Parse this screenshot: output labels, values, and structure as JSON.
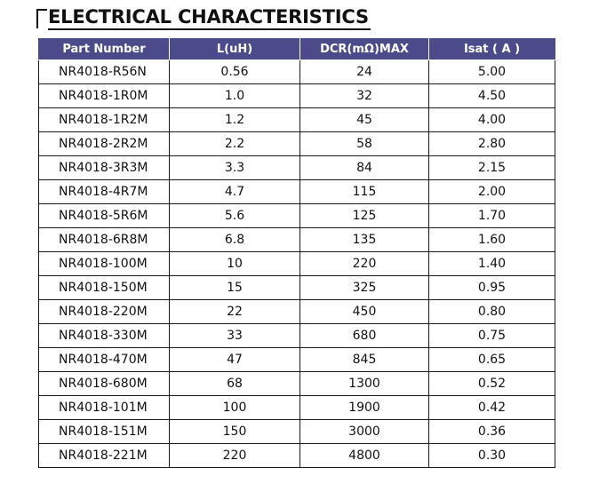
{
  "section_title": "ELECTRICAL CHARACTERISTICS",
  "table": {
    "headers": [
      "Part Number",
      "L(uH)",
      "DCR(mΩ)MAX",
      "Isat ( A )"
    ],
    "rows": [
      [
        "NR4018-R56N",
        "0.56",
        "24",
        "5.00"
      ],
      [
        "NR4018-1R0M",
        "1.0",
        "32",
        "4.50"
      ],
      [
        "NR4018-1R2M",
        "1.2",
        "45",
        "4.00"
      ],
      [
        "NR4018-2R2M",
        "2.2",
        "58",
        "2.80"
      ],
      [
        "NR4018-3R3M",
        "3.3",
        "84",
        "2.15"
      ],
      [
        "NR4018-4R7M",
        "4.7",
        "115",
        "2.00"
      ],
      [
        "NR4018-5R6M",
        "5.6",
        "125",
        "1.70"
      ],
      [
        "NR4018-6R8M",
        "6.8",
        "135",
        "1.60"
      ],
      [
        "NR4018-100M",
        "10",
        "220",
        "1.40"
      ],
      [
        "NR4018-150M",
        "15",
        "325",
        "0.95"
      ],
      [
        "NR4018-220M",
        "22",
        "450",
        "0.80"
      ],
      [
        "NR4018-330M",
        "33",
        "680",
        "0.75"
      ],
      [
        "NR4018-470M",
        "47",
        "845",
        "0.65"
      ],
      [
        "NR4018-680M",
        "68",
        "1300",
        "0.52"
      ],
      [
        "NR4018-101M",
        "100",
        "1900",
        "0.42"
      ],
      [
        "NR4018-151M",
        "150",
        "3000",
        "0.36"
      ],
      [
        "NR4018-221M",
        "220",
        "4800",
        "0.30"
      ]
    ]
  },
  "colors": {
    "header_bg": "#4b4a8b",
    "header_text": "#ffffff",
    "grid": "#1a1a1a"
  }
}
